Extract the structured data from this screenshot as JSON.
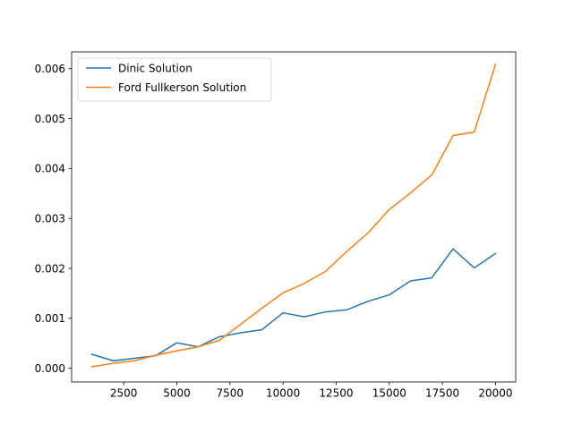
{
  "chart_data": {
    "type": "line",
    "title": "",
    "xlabel": "",
    "ylabel": "",
    "xlim": [
      50,
      20950
    ],
    "ylim": [
      -0.000275,
      0.006335
    ],
    "xticks": [
      2500,
      5000,
      7500,
      10000,
      12500,
      15000,
      17500,
      20000
    ],
    "xtick_labels": [
      "2500",
      "5000",
      "7500",
      "10000",
      "12500",
      "15000",
      "17500",
      "20000"
    ],
    "yticks": [
      0.0,
      0.001,
      0.002,
      0.003,
      0.004,
      0.005,
      0.006
    ],
    "ytick_labels": [
      "0.000",
      "0.001",
      "0.002",
      "0.003",
      "0.004",
      "0.005",
      "0.006"
    ],
    "grid": false,
    "legend_position": "top-left",
    "x": [
      1000,
      2000,
      3000,
      4000,
      5000,
      6000,
      7000,
      8000,
      9000,
      10000,
      11000,
      12000,
      13000,
      14000,
      15000,
      16000,
      17000,
      18000,
      19000,
      20000
    ],
    "series": [
      {
        "name": "Dinic Solution",
        "color": "#1f77b4",
        "values": [
          0.00028,
          0.00015,
          0.0002,
          0.00025,
          0.00051,
          0.00043,
          0.00063,
          0.00071,
          0.00077,
          0.00111,
          0.00103,
          0.00113,
          0.00117,
          0.00134,
          0.00147,
          0.00175,
          0.00181,
          0.00239,
          0.00201,
          0.0023
        ]
      },
      {
        "name": "Ford Fullkerson Solution",
        "color": "#ff7f0e",
        "values": [
          3e-05,
          0.0001,
          0.00015,
          0.00026,
          0.00035,
          0.00043,
          0.00056,
          0.00088,
          0.0012,
          0.00151,
          0.0017,
          0.00194,
          0.00234,
          0.00271,
          0.00318,
          0.00351,
          0.00387,
          0.00466,
          0.00473,
          0.00609
        ]
      }
    ]
  }
}
